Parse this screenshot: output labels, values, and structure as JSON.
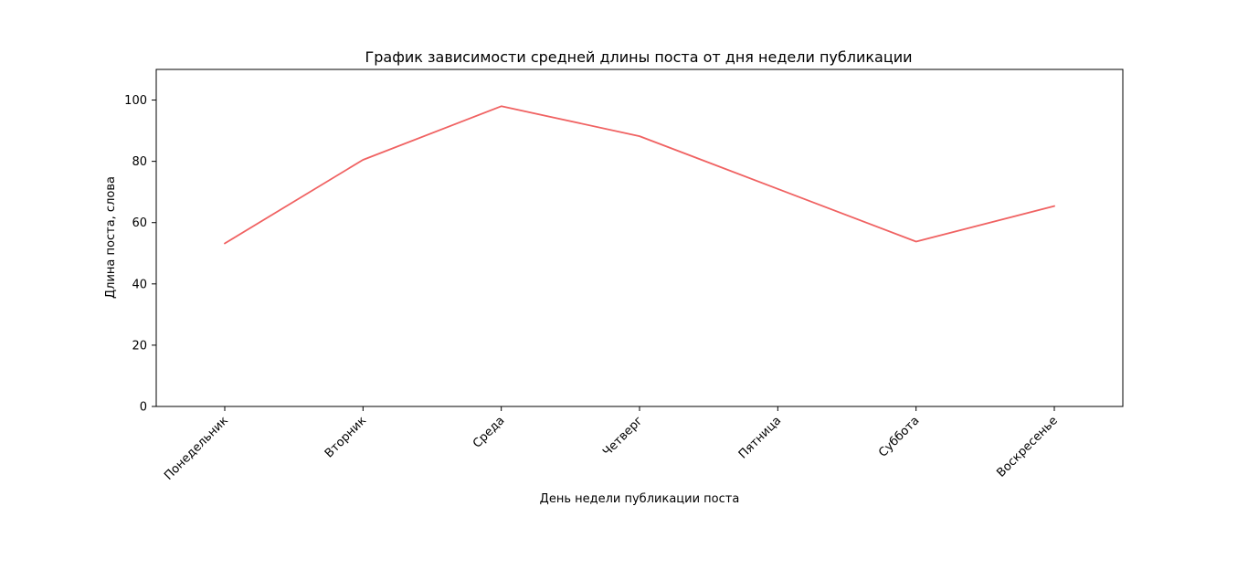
{
  "chart_data": {
    "type": "line",
    "title": "График зависимости средней длины поста от дня недели публикации",
    "xlabel": "День недели публикации поста",
    "ylabel": "Длина поста, слова",
    "categories": [
      "Понедельник",
      "Вторник",
      "Среда",
      "Четверг",
      "Пятница",
      "Суббота",
      "Воскресенье"
    ],
    "series": [
      {
        "values": [
          53.2,
          80.5,
          98.0,
          88.2,
          71.0,
          53.8,
          65.4
        ],
        "color": "#f06262"
      }
    ],
    "ylim": [
      0,
      110
    ],
    "yticks": [
      0,
      20,
      40,
      60,
      80,
      100
    ],
    "grid": false,
    "legend": "none"
  }
}
